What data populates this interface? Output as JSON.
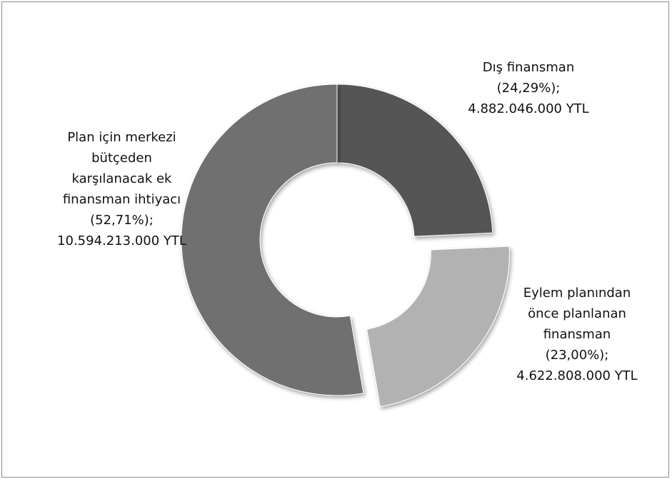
{
  "chart_data": {
    "type": "donut",
    "categories": [
      "Dış finansman",
      "Eylem planından önce planlanan finansman",
      "Plan için merkezi bütçeden karşılanacak ek finansman ihtiyacı"
    ],
    "values": [
      24.29,
      23.0,
      52.71
    ],
    "value_labels": [
      "(24,29%);",
      "(23,00%);",
      "(52,71%);"
    ],
    "amounts": [
      4882046000,
      4622808000,
      10594213000
    ],
    "amount_labels": [
      "4.882.046.000 YTL",
      "4.622.808.000 YTL",
      "10.594.213.000 YTL"
    ],
    "colors": [
      "#545454",
      "#b2b2b2",
      "#707070"
    ],
    "explode": [
      false,
      true,
      false
    ]
  }
}
